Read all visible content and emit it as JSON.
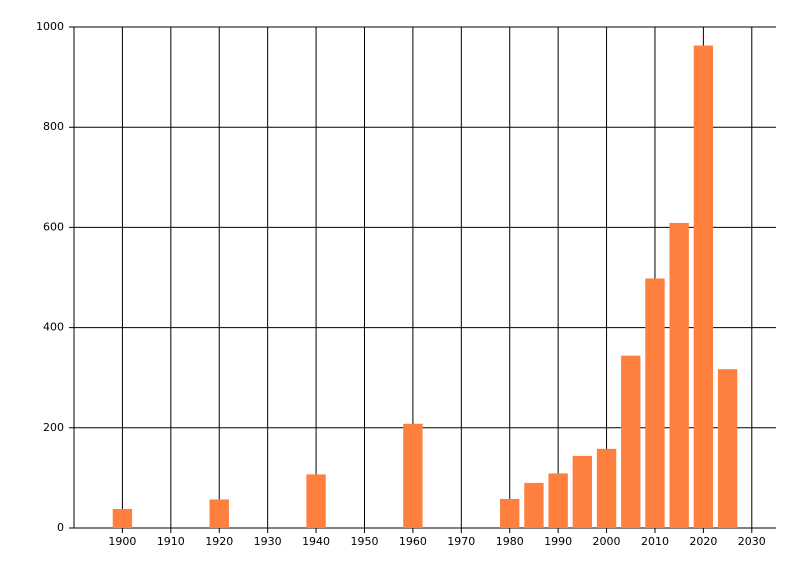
{
  "chart_data": {
    "type": "bar",
    "x": [
      1900,
      1920,
      1940,
      1960,
      1980,
      1985,
      1990,
      1995,
      2000,
      2005,
      2010,
      2015,
      2020,
      2025
    ],
    "values": [
      38,
      57,
      107,
      208,
      58,
      90,
      109,
      144,
      158,
      344,
      498,
      609,
      963,
      317
    ],
    "color": "#ff7f3f",
    "xlim": [
      1890,
      2035
    ],
    "xticks": [
      1900,
      1910,
      1920,
      1930,
      1940,
      1950,
      1960,
      1970,
      1980,
      1990,
      2000,
      2010,
      2020,
      2030
    ],
    "ylim": [
      0,
      1000
    ],
    "yticks": [
      0,
      200,
      400,
      600,
      800,
      1000
    ],
    "grid": true
  }
}
